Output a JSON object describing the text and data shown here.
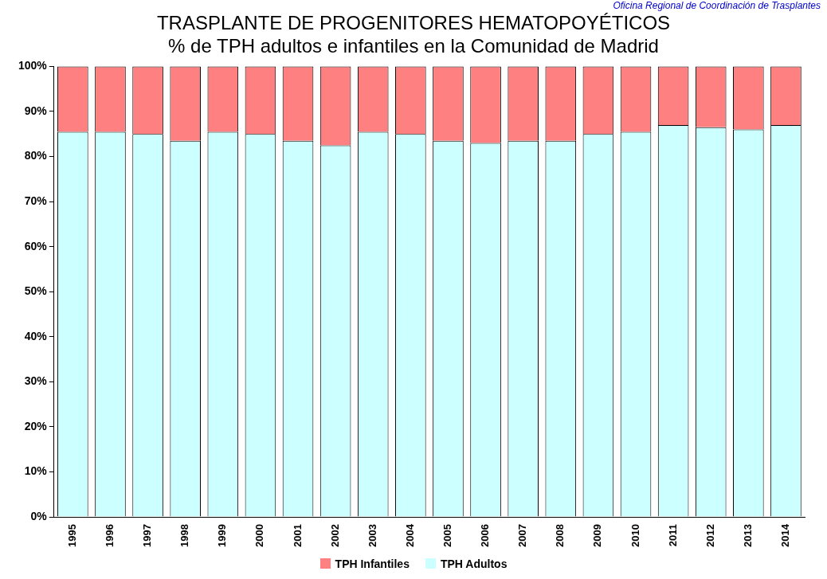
{
  "chart_data": {
    "type": "bar",
    "title": "TRASPLANTE DE PROGENITORES HEMATOPOYÉTICOS",
    "subtitle": "% de TPH adultos e infantiles en la Comunidad de Madrid",
    "annotations": [
      "Oficina Regional de Coordinación de Trasplantes"
    ],
    "categories": [
      "1995",
      "1996",
      "1997",
      "1998",
      "1999",
      "2000",
      "2001",
      "2002",
      "2003",
      "2004",
      "2005",
      "2006",
      "2007",
      "2008",
      "2009",
      "2010",
      "2011",
      "2012",
      "2013",
      "2014"
    ],
    "stacked": true,
    "series": [
      {
        "name": "TPH Adultos",
        "color": "#ccffff",
        "values": [
          85.5,
          85.5,
          85,
          83.5,
          85.5,
          85,
          83.5,
          82.5,
          85.5,
          85,
          83.5,
          83,
          83.5,
          83.5,
          85,
          85.5,
          87,
          86.5,
          86,
          87
        ]
      },
      {
        "name": "TPH Infantiles",
        "color": "#ff8080",
        "values": [
          14.5,
          14.5,
          15,
          16.5,
          14.5,
          15,
          16.5,
          17.5,
          14.5,
          15,
          16.5,
          17,
          16.5,
          16.5,
          15,
          14.5,
          13,
          13.5,
          14,
          13
        ]
      }
    ],
    "ylim": [
      0,
      100
    ],
    "yticks": [
      {
        "value": 0,
        "label": "0%"
      },
      {
        "value": 10,
        "label": "10%"
      },
      {
        "value": 20,
        "label": "20%"
      },
      {
        "value": 30,
        "label": "30%"
      },
      {
        "value": 40,
        "label": "40%"
      },
      {
        "value": 50,
        "label": "50%"
      },
      {
        "value": 60,
        "label": "60%"
      },
      {
        "value": 70,
        "label": "70%"
      },
      {
        "value": 80,
        "label": "80%"
      },
      {
        "value": 90,
        "label": "90%"
      },
      {
        "value": 100,
        "label": "100%"
      }
    ],
    "legend": "bottom",
    "grid": false
  }
}
